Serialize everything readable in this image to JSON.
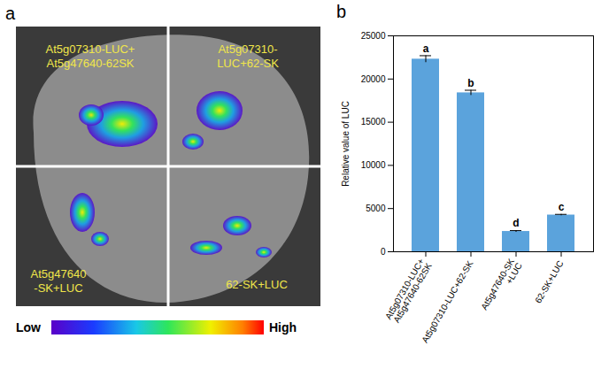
{
  "panel_a": {
    "panel_label": "a",
    "quadrant_labels": [
      "At5g07310-LUC+ At5g47640-62SK",
      "At5g07310- LUC+62-SK",
      "At5g47640 -SK+LUC",
      "62-SK+LUC"
    ],
    "colorbar_labels": [
      "Low",
      "High"
    ]
  },
  "chart_data": {
    "type": "bar",
    "panel_label": "b",
    "categories": [
      "At5g07310-LUC+ At5g47640-62SK",
      "At5g07310-LUC+62-SK",
      "At5g47640-SK +LUC",
      "62-SK+LUC"
    ],
    "values": [
      22300,
      18400,
      2350,
      4250
    ],
    "errors": [
      400,
      300,
      100,
      80
    ],
    "letters": [
      "a",
      "b",
      "d",
      "c"
    ],
    "y_label": "Relative value of LUC",
    "color": "#5ba3dc",
    "ylim": [
      0,
      25000
    ],
    "yticks": [
      0,
      5000,
      10000,
      15000,
      20000,
      25000
    ],
    "grid": false
  }
}
